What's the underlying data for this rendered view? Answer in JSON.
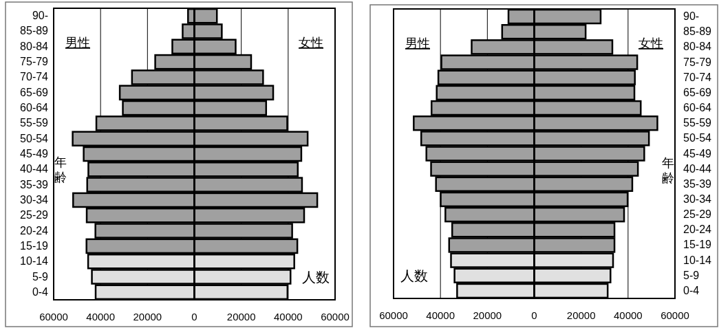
{
  "chart_data": [
    {
      "type": "bar",
      "orientation": "horizontal",
      "stacked": true,
      "xlabel": "人数",
      "ylabel": "年齢",
      "annotations": [
        "男性",
        "女性"
      ],
      "grid": "x",
      "xlim": [
        -60000,
        60000
      ],
      "xticks": [
        {
          "value": -60000,
          "label": "60000"
        },
        {
          "value": -40000,
          "label": "40000"
        },
        {
          "value": -20000,
          "label": "20000"
        },
        0,
        20000,
        40000,
        60000
      ],
      "categories": [
        "90-",
        "85-89",
        "80-84",
        "75-79",
        "70-74",
        "65-69",
        "60-64",
        "55-59",
        "50-54",
        "45-49",
        "40-44",
        "35-39",
        "30-34",
        "25-29",
        "20-24",
        "15-19",
        "10-14",
        "5-9",
        "0-4"
      ],
      "series": [
        {
          "colors": [
            "#a0a0a0",
            "#a0a0a0",
            "#a0a0a0",
            "#a0a0a0",
            "#a0a0a0",
            "#a0a0a0",
            "#a0a0a0",
            "#a0a0a0",
            "#a0a0a0",
            "#a0a0a0",
            "#a0a0a0",
            "#a0a0a0",
            "#a0a0a0",
            "#a0a0a0",
            "#a0a0a0",
            "#a0a0a0",
            "#e0e0e0",
            "#e0e0e0",
            "#e0e0e0"
          ],
          "values": [
            -2700,
            -5000,
            -9400,
            -16700,
            -26600,
            -31800,
            -30500,
            -41800,
            -51900,
            -47200,
            -45200,
            -45700,
            -51700,
            -45900,
            -42200,
            -46000,
            -45300,
            -43700,
            -42100
          ]
        },
        {
          "colors": [
            "#a0a0a0",
            "#a0a0a0",
            "#a0a0a0",
            "#a0a0a0",
            "#a0a0a0",
            "#a0a0a0",
            "#a0a0a0",
            "#a0a0a0",
            "#a0a0a0",
            "#a0a0a0",
            "#a0a0a0",
            "#a0a0a0",
            "#a0a0a0",
            "#a0a0a0",
            "#a0a0a0",
            "#a0a0a0",
            "#e0e0e0",
            "#e0e0e0",
            "#e0e0e0"
          ],
          "values": [
            9600,
            11700,
            17600,
            24200,
            29300,
            33600,
            30600,
            39600,
            48300,
            45600,
            44100,
            45900,
            52400,
            46800,
            41700,
            43900,
            42600,
            41000,
            39700
          ]
        }
      ]
    },
    {
      "type": "bar",
      "orientation": "horizontal",
      "stacked": true,
      "xlabel": "人数",
      "ylabel": "年齢",
      "annotations": [
        "男性",
        "女性"
      ],
      "grid": "x",
      "xlim": [
        -60000,
        60000
      ],
      "xticks": [
        {
          "value": -60000,
          "label": "60000"
        },
        {
          "value": -40000,
          "label": "40000"
        },
        {
          "value": -20000,
          "label": "20000"
        },
        0,
        20000,
        40000,
        60000
      ],
      "categories": [
        "90-",
        "85-89",
        "80-84",
        "75-79",
        "70-74",
        "65-69",
        "60-64",
        "55-59",
        "50-54",
        "45-49",
        "40-44",
        "35-39",
        "30-34",
        "25-29",
        "20-24",
        "15-19",
        "10-14",
        "5-9",
        "0-4"
      ],
      "series": [
        {
          "colors": [
            "#a0a0a0",
            "#a0a0a0",
            "#a0a0a0",
            "#a0a0a0",
            "#a0a0a0",
            "#a0a0a0",
            "#a0a0a0",
            "#a0a0a0",
            "#a0a0a0",
            "#a0a0a0",
            "#a0a0a0",
            "#a0a0a0",
            "#a0a0a0",
            "#a0a0a0",
            "#a0a0a0",
            "#a0a0a0",
            "#e0e0e0",
            "#e0e0e0",
            "#e0e0e0"
          ],
          "values": [
            -11000,
            -13700,
            -26700,
            -39600,
            -40900,
            -41600,
            -43800,
            -51400,
            -48200,
            -46000,
            -44000,
            -41900,
            -39900,
            -37900,
            -35000,
            -36300,
            -35500,
            -34000,
            -32900
          ]
        },
        {
          "colors": [
            "#a0a0a0",
            "#a0a0a0",
            "#a0a0a0",
            "#a0a0a0",
            "#a0a0a0",
            "#a0a0a0",
            "#a0a0a0",
            "#a0a0a0",
            "#a0a0a0",
            "#a0a0a0",
            "#a0a0a0",
            "#a0a0a0",
            "#a0a0a0",
            "#a0a0a0",
            "#a0a0a0",
            "#a0a0a0",
            "#e0e0e0",
            "#e0e0e0",
            "#e0e0e0"
          ],
          "values": [
            28300,
            21900,
            33300,
            43900,
            42900,
            42700,
            45400,
            52500,
            48900,
            46900,
            44200,
            41800,
            39800,
            38300,
            34200,
            34200,
            33600,
            32500,
            31300
          ]
        }
      ]
    }
  ]
}
